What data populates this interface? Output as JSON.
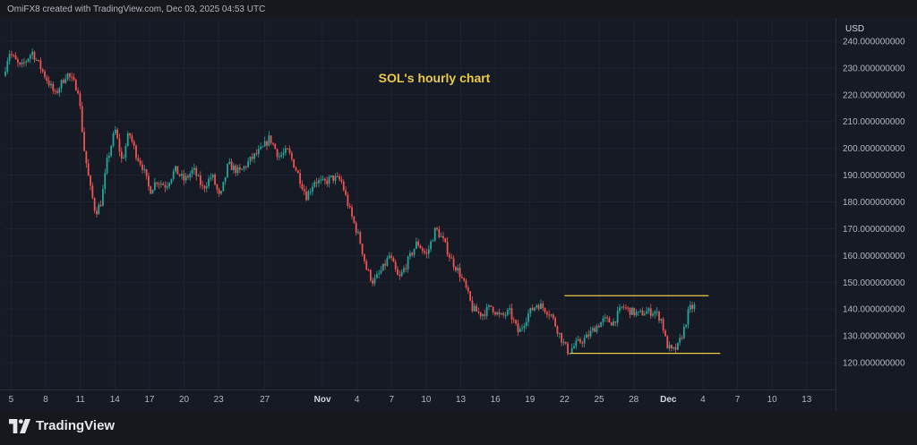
{
  "header": {
    "credit": "OmiFX8 created with TradingView.com, Dec 03, 2025 04:53 UTC"
  },
  "footer": {
    "brand": "TradingView"
  },
  "colors": {
    "up": "#26a69a",
    "down": "#ef5350",
    "annotation": "#e8c94a",
    "grid": "#1f2331",
    "axis_text": "#b2b5be"
  },
  "chart_data": {
    "type": "candlestick",
    "title": "SOL's hourly chart",
    "currency": "USD",
    "ylim": [
      110,
      248
    ],
    "y_ticks": [
      120,
      130,
      140,
      150,
      160,
      170,
      180,
      190,
      200,
      210,
      220,
      230,
      240
    ],
    "y_tick_labels": [
      "120.000000000",
      "130.000000000",
      "140.000000000",
      "150.000000000",
      "160.000000000",
      "170.000000000",
      "180.000000000",
      "190.000000000",
      "200.000000000",
      "210.000000000",
      "220.000000000",
      "230.000000000",
      "240.000000000"
    ],
    "x_start": "Oct 4, 2025",
    "x_ticks": [
      "5",
      "8",
      "11",
      "14",
      "17",
      "20",
      "23",
      "27",
      "Nov",
      "4",
      "7",
      "10",
      "13",
      "16",
      "19",
      "22",
      "25",
      "28",
      "Dec",
      "4",
      "7",
      "10",
      "13"
    ],
    "x_tick_days": [
      5,
      8,
      11,
      14,
      17,
      20,
      23,
      27,
      32,
      35,
      38,
      41,
      44,
      47,
      50,
      53,
      56,
      59,
      62,
      65,
      68,
      71,
      74
    ],
    "x_range_days": [
      4.5,
      76.5
    ],
    "price_path": [
      [
        4.5,
        227
      ],
      [
        5.0,
        236
      ],
      [
        6.0,
        230
      ],
      [
        7.0,
        236
      ],
      [
        8.0,
        228
      ],
      [
        9.0,
        220
      ],
      [
        10.0,
        228
      ],
      [
        11.0,
        222
      ],
      [
        11.5,
        200
      ],
      [
        12.0,
        186
      ],
      [
        12.5,
        176
      ],
      [
        13.0,
        180
      ],
      [
        13.5,
        195
      ],
      [
        14.2,
        207
      ],
      [
        14.8,
        195
      ],
      [
        15.4,
        206
      ],
      [
        16.0,
        198
      ],
      [
        16.6,
        193
      ],
      [
        17.2,
        184
      ],
      [
        17.8,
        188
      ],
      [
        18.6,
        186
      ],
      [
        19.4,
        192
      ],
      [
        20.2,
        188
      ],
      [
        21.0,
        192
      ],
      [
        21.8,
        185
      ],
      [
        22.6,
        190
      ],
      [
        23.3,
        181
      ],
      [
        24.0,
        194
      ],
      [
        25.0,
        191
      ],
      [
        26.0,
        196
      ],
      [
        27.0,
        200
      ],
      [
        27.6,
        204
      ],
      [
        28.4,
        197
      ],
      [
        29.2,
        199
      ],
      [
        30.0,
        191
      ],
      [
        30.8,
        182
      ],
      [
        31.5,
        188
      ],
      [
        32.3,
        187
      ],
      [
        33.0,
        189
      ],
      [
        33.8,
        188
      ],
      [
        34.6,
        176
      ],
      [
        35.4,
        166
      ],
      [
        36.0,
        155
      ],
      [
        36.6,
        150
      ],
      [
        37.4,
        155
      ],
      [
        38.0,
        160
      ],
      [
        38.8,
        151
      ],
      [
        39.6,
        158
      ],
      [
        40.4,
        165
      ],
      [
        41.2,
        160
      ],
      [
        42.0,
        170
      ],
      [
        42.6,
        166
      ],
      [
        43.4,
        158
      ],
      [
        44.0,
        154
      ],
      [
        44.6,
        148
      ],
      [
        45.2,
        140
      ],
      [
        46.0,
        138
      ],
      [
        46.8,
        141
      ],
      [
        47.6,
        137
      ],
      [
        48.4,
        139
      ],
      [
        49.2,
        131
      ],
      [
        50.0,
        138
      ],
      [
        50.8,
        142
      ],
      [
        51.5,
        140
      ],
      [
        52.0,
        138
      ],
      [
        52.6,
        132
      ],
      [
        53.0,
        128
      ],
      [
        53.5,
        124
      ],
      [
        54.2,
        127
      ],
      [
        55.0,
        129
      ],
      [
        55.8,
        133
      ],
      [
        56.6,
        136
      ],
      [
        57.4,
        135
      ],
      [
        58.2,
        141
      ],
      [
        59.0,
        139
      ],
      [
        59.6,
        138
      ],
      [
        60.2,
        139
      ],
      [
        61.0,
        139
      ],
      [
        61.6,
        136
      ],
      [
        62.0,
        127
      ],
      [
        62.5,
        124
      ],
      [
        63.0,
        126
      ],
      [
        63.5,
        132
      ],
      [
        64.0,
        140
      ],
      [
        64.4,
        141
      ]
    ],
    "channel": {
      "upper": [
        [
          53.0,
          145
        ],
        [
          65.5,
          145
        ]
      ],
      "lower": [
        [
          53.5,
          123.5
        ],
        [
          66.5,
          123.5
        ]
      ]
    }
  }
}
